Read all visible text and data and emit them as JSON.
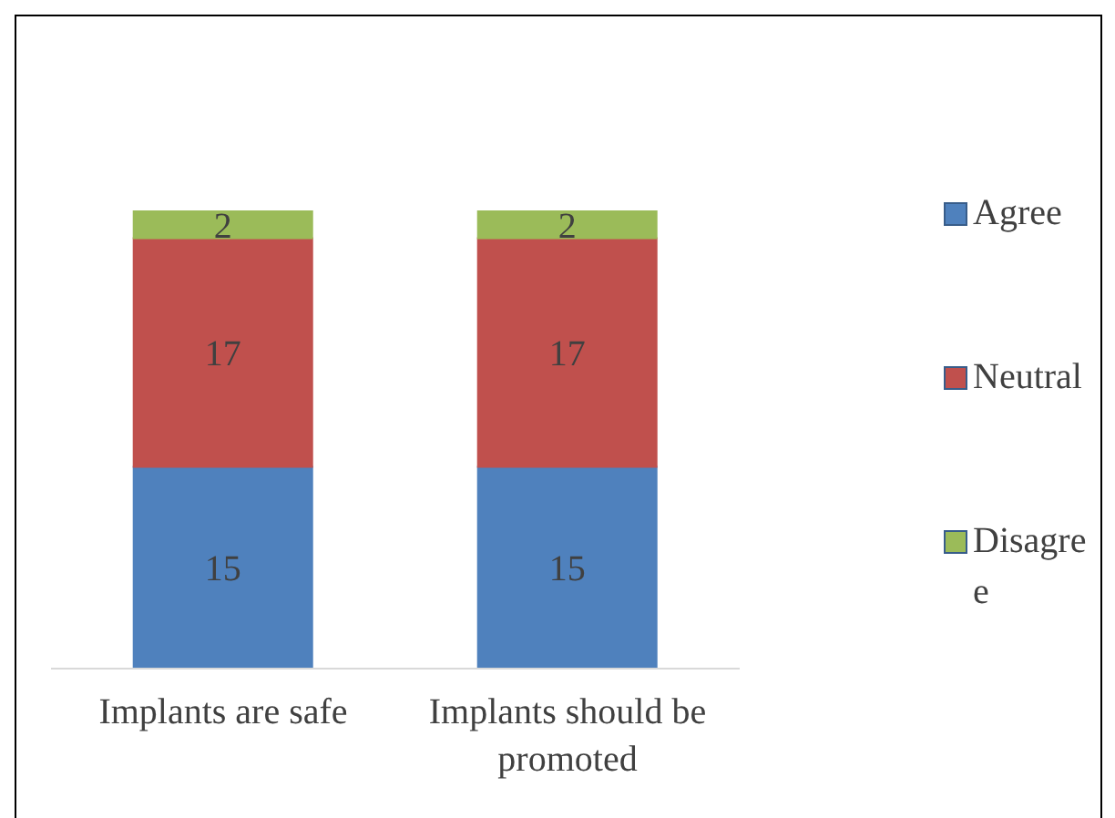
{
  "chart_data": {
    "type": "bar",
    "stacked": true,
    "categories": [
      "Implants are safe",
      "Implants should be promoted"
    ],
    "series": [
      {
        "name": "Agree",
        "color": "#4f81bd",
        "values": [
          15,
          15
        ]
      },
      {
        "name": "Neutral",
        "color": "#c0504d",
        "values": [
          17,
          17
        ]
      },
      {
        "name": "Disagree",
        "color": "#9bbb59",
        "values": [
          2,
          2
        ]
      }
    ],
    "tick_labels": "x",
    "data_labels": true,
    "legend": "right"
  }
}
